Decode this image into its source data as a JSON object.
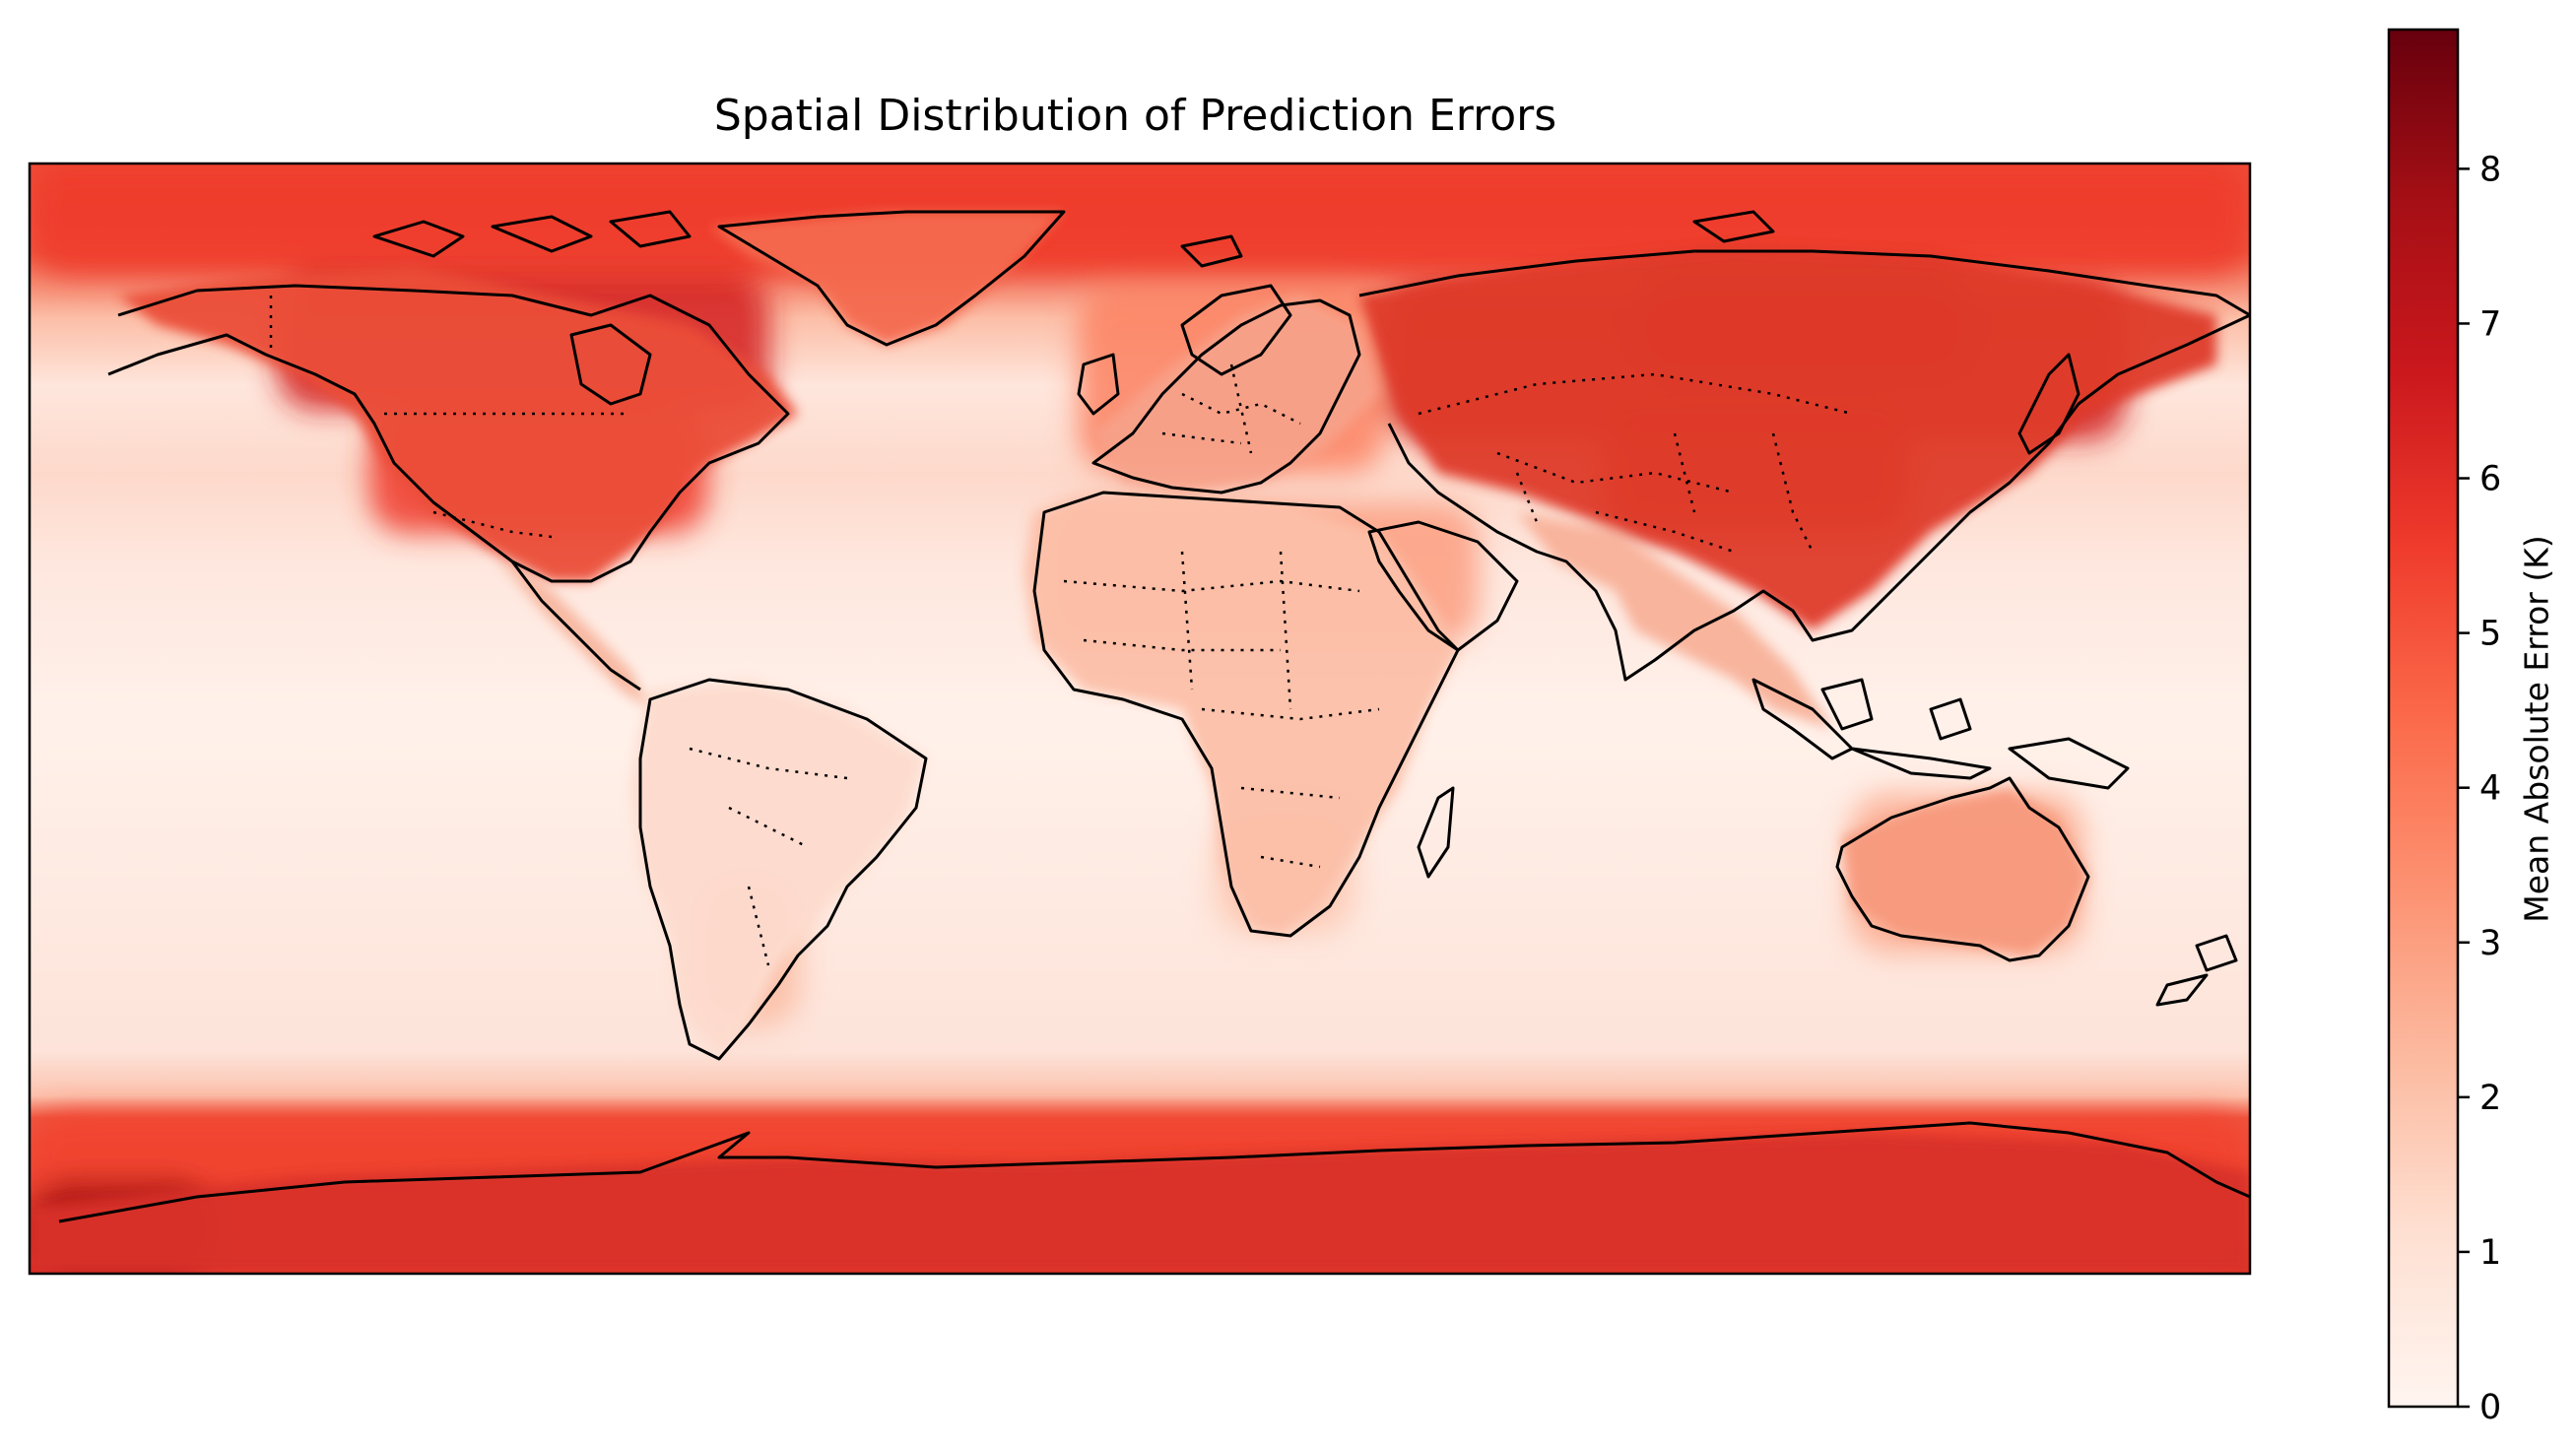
{
  "title": "Spatial Distribution of Prediction Errors",
  "colorbar": {
    "label": "Mean Absolute Error (K)",
    "min": 0,
    "max": 8.9,
    "ticks": [
      "0",
      "1",
      "2",
      "3",
      "4",
      "5",
      "6",
      "7",
      "8"
    ],
    "colormap": "Reds",
    "colors": [
      "#fff5f0",
      "#fee0d2",
      "#fcbba1",
      "#fc9272",
      "#fb6a4a",
      "#ef3b2c",
      "#cb181d",
      "#a50f15",
      "#67000d"
    ]
  },
  "map": {
    "projection": "PlateCarree",
    "extent_lon": [
      -180,
      180
    ],
    "extent_lat": [
      -90,
      90
    ],
    "background_error": 0.6,
    "coastline_color": "#000000",
    "borders": "dotted"
  },
  "error_zones": [
    {
      "region": "Arctic band",
      "lon": [
        -180,
        180
      ],
      "lat": [
        72,
        90
      ],
      "value": 5.6
    },
    {
      "region": "Antarctic band",
      "lon": [
        -180,
        180
      ],
      "lat": [
        -90,
        -64
      ],
      "value": 5.4
    },
    {
      "region": "Northern Siberia",
      "lon": [
        80,
        135
      ],
      "lat": [
        55,
        72
      ],
      "value": 7.6
    },
    {
      "region": "Russia / Central Asia",
      "lon": [
        40,
        160
      ],
      "lat": [
        45,
        70
      ],
      "value": 6.5
    },
    {
      "region": "China / Mongolia",
      "lon": [
        75,
        125
      ],
      "lat": [
        30,
        50
      ],
      "value": 6.0
    },
    {
      "region": "Canada",
      "lon": [
        -140,
        -60
      ],
      "lat": [
        50,
        72
      ],
      "value": 6.4
    },
    {
      "region": "United States",
      "lon": [
        -125,
        -70
      ],
      "lat": [
        30,
        50
      ],
      "value": 5.6
    },
    {
      "region": "Europe",
      "lon": [
        -10,
        40
      ],
      "lat": [
        40,
        70
      ],
      "value": 3.8
    },
    {
      "region": "North Africa / Arabia",
      "lon": [
        -15,
        55
      ],
      "lat": [
        12,
        35
      ],
      "value": 3.0
    },
    {
      "region": "Southern Africa",
      "lon": [
        12,
        35
      ],
      "lat": [
        -35,
        -15
      ],
      "value": 1.8
    },
    {
      "region": "Australia",
      "lon": [
        115,
        153
      ],
      "lat": [
        -38,
        -12
      ],
      "value": 2.6
    },
    {
      "region": "Southern South America",
      "lon": [
        -72,
        -55
      ],
      "lat": [
        -50,
        -25
      ],
      "value": 2.2
    },
    {
      "region": "West Antarctica",
      "lon": [
        -180,
        -150
      ],
      "lat": [
        -90,
        -75
      ],
      "value": 7.8
    }
  ]
}
